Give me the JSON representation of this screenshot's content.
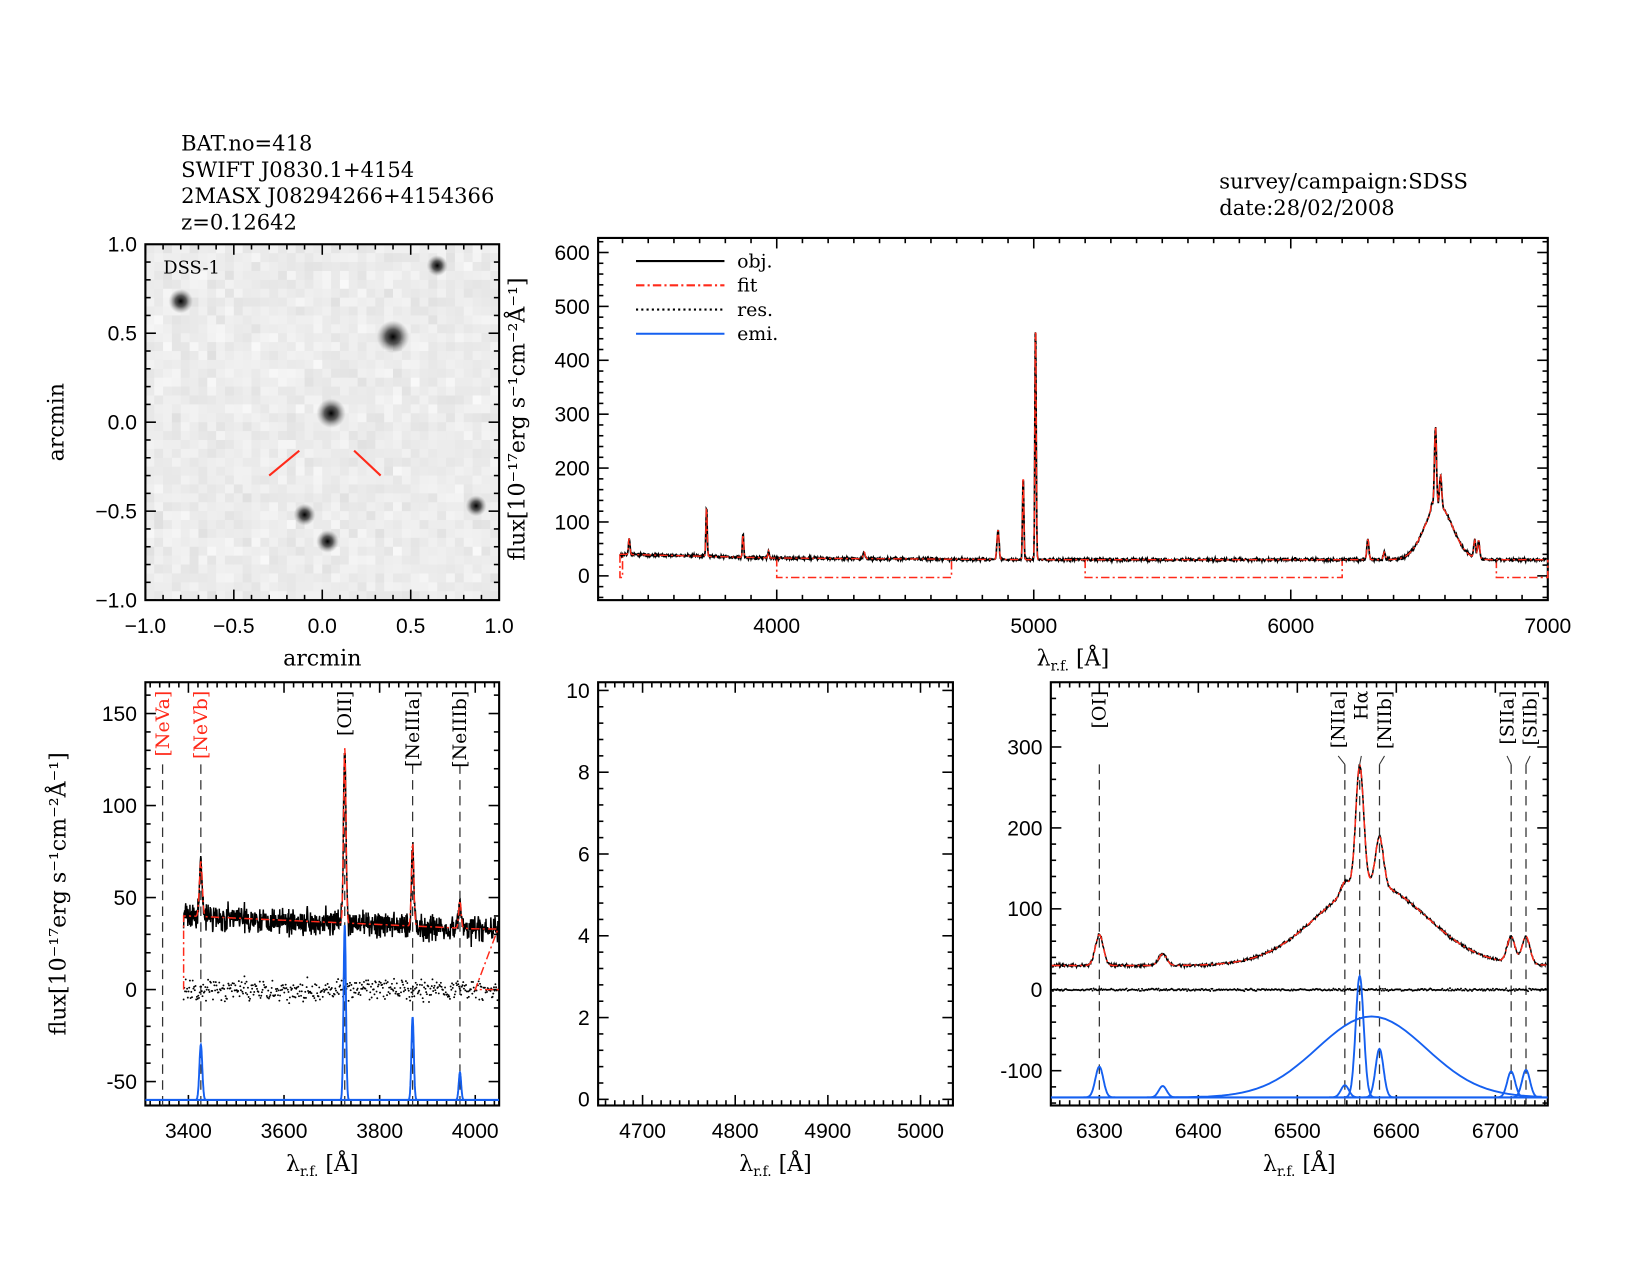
{
  "header": {
    "left": [
      "BAT.no=418",
      "SWIFT J0830.1+4154",
      "2MASX J08294266+4154366",
      "z=0.12642"
    ],
    "right": [
      "survey/campaign:SDSS",
      "date:28/02/2008"
    ]
  },
  "colors": {
    "obj": "#000000",
    "fit": "#ff2a1a",
    "res": "#000000",
    "emi": "#1560f0",
    "label_red": "#ff2a1a"
  },
  "chart_data": [
    {
      "id": "image",
      "type": "image",
      "label": "DSS-1",
      "xlabel": "arcmin",
      "ylabel": "arcmin",
      "xlim": [
        -1.0,
        1.0
      ],
      "ylim": [
        -1.0,
        1.0
      ],
      "xticks": [
        "−1.0",
        "−0.5",
        "0.0",
        "0.5",
        "1.0"
      ],
      "yticks": [
        "−1.0",
        "−0.5",
        "0.0",
        "0.5",
        "1.0"
      ],
      "sources": [
        {
          "x": 0.05,
          "y": 0.05,
          "mag": 1.0
        },
        {
          "x": 0.4,
          "y": 0.48,
          "mag": 1.2
        },
        {
          "x": -0.8,
          "y": 0.68,
          "mag": 0.7
        },
        {
          "x": 0.65,
          "y": 0.88,
          "mag": 0.5
        },
        {
          "x": -0.1,
          "y": -0.52,
          "mag": 0.55
        },
        {
          "x": 0.03,
          "y": -0.67,
          "mag": 0.6
        },
        {
          "x": 0.87,
          "y": -0.47,
          "mag": 0.5
        }
      ],
      "marker_color": "#ff2a1a"
    },
    {
      "id": "full",
      "type": "line",
      "xlabel": "λ",
      "xlabel_sub": "r.f.",
      "xlabel_unit": "[Å]",
      "ylabel": "flux[10⁻¹⁷erg s⁻¹cm⁻²Å⁻¹]",
      "xlim": [
        3305,
        7000
      ],
      "ylim": [
        -45,
        627
      ],
      "xticks": [
        4000,
        5000,
        6000,
        7000
      ],
      "yticks": [
        0,
        100,
        200,
        300,
        400,
        500,
        600
      ],
      "legend": {
        "position": "top-left",
        "entries": [
          "obj.",
          "fit",
          "res.",
          "emi."
        ]
      },
      "continuum": [
        [
          3400,
          40
        ],
        [
          4000,
          33
        ],
        [
          5000,
          30
        ],
        [
          6000,
          30
        ],
        [
          7000,
          30
        ]
      ],
      "lines": [
        {
          "w": 3426,
          "amp": 30,
          "s": 3
        },
        {
          "w": 3727,
          "amp": 95,
          "s": 2.5
        },
        {
          "w": 3869,
          "amp": 45,
          "s": 2.5
        },
        {
          "w": 3968,
          "amp": 15,
          "s": 2.5
        },
        {
          "w": 4340,
          "amp": 12,
          "s": 4
        },
        {
          "w": 4861,
          "amp": 55,
          "s": 4
        },
        {
          "w": 4959,
          "amp": 160,
          "s": 2.5
        },
        {
          "w": 5007,
          "amp": 455,
          "s": 2.5
        },
        {
          "w": 6300,
          "amp": 38,
          "s": 4
        },
        {
          "w": 6364,
          "amp": 14,
          "s": 4
        },
        {
          "w": 6575,
          "amp": 100,
          "s": 55
        },
        {
          "w": 6563,
          "amp": 150,
          "s": 4
        },
        {
          "w": 6583,
          "amp": 60,
          "s": 4
        },
        {
          "w": 6548,
          "amp": 15,
          "s": 4
        },
        {
          "w": 6716,
          "amp": 32,
          "s": 4
        },
        {
          "w": 6731,
          "amp": 34,
          "s": 4
        }
      ],
      "fit_mask_segments": [
        [
          3390,
          3400
        ],
        [
          4000,
          4680
        ],
        [
          5200,
          6200
        ],
        [
          6800,
          7000
        ]
      ]
    },
    {
      "id": "blue",
      "type": "line",
      "xlabel": "λ",
      "xlabel_sub": "r.f.",
      "xlabel_unit": "[Å]",
      "ylabel": "flux[10⁻¹⁷erg s⁻¹cm⁻²Å⁻¹]",
      "xlim": [
        3310,
        4050
      ],
      "ylim": [
        -63,
        167
      ],
      "xticks": [
        3400,
        3600,
        3800,
        4000
      ],
      "yticks": [
        -50,
        0,
        50,
        100,
        150
      ],
      "emi_baseline": -60,
      "line_labels": [
        {
          "name": "[NeVa]",
          "w": 3346,
          "color": "red"
        },
        {
          "name": "[NeVb]",
          "w": 3426,
          "color": "red"
        },
        {
          "name": "[OII]",
          "w": 3727,
          "color": "black"
        },
        {
          "name": "[NeIIIa]",
          "w": 3869,
          "color": "black"
        },
        {
          "name": "[NeIIIb]",
          "w": 3968,
          "color": "black"
        }
      ],
      "fit_range": [
        3390,
        4000
      ]
    },
    {
      "id": "middle",
      "type": "line",
      "xlabel": "λ",
      "xlabel_sub": "r.f.",
      "xlabel_unit": "[Å]",
      "xlim": [
        4652,
        5035
      ],
      "ylim": [
        -0.15,
        10.2
      ],
      "xticks": [
        4700,
        4800,
        4900,
        5000
      ],
      "yticks": [
        0,
        2,
        4,
        6,
        8,
        10
      ]
    },
    {
      "id": "red",
      "type": "line",
      "xlabel": "λ",
      "xlabel_sub": "r.f.",
      "xlabel_unit": "[Å]",
      "xlim": [
        6251,
        6753
      ],
      "ylim": [
        -143,
        380
      ],
      "xticks": [
        6300,
        6400,
        6500,
        6600,
        6700
      ],
      "yticks": [
        -100,
        0,
        100,
        200,
        300
      ],
      "emi_baseline": -133,
      "line_labels": [
        {
          "name": "[OI]",
          "w": 6300,
          "color": "black"
        },
        {
          "name": "[NIIa]",
          "w": 6548,
          "color": "black"
        },
        {
          "name": "Hα",
          "w": 6563,
          "color": "black"
        },
        {
          "name": "[NIIb]",
          "w": 6583,
          "color": "black"
        },
        {
          "name": "[SIIa]",
          "w": 6716,
          "color": "black"
        },
        {
          "name": "[SIIb]",
          "w": 6731,
          "color": "black"
        }
      ]
    }
  ]
}
